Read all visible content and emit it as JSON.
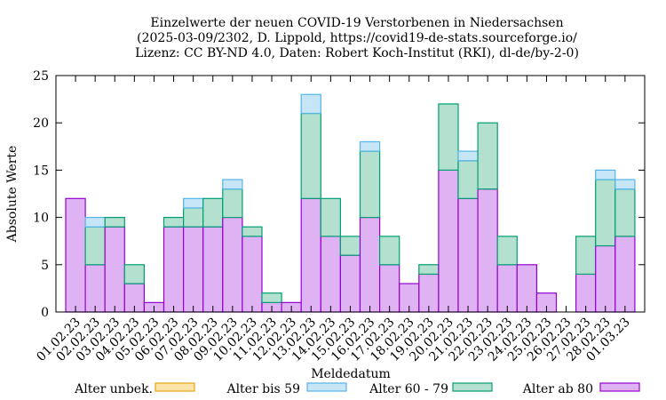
{
  "chart_data": {
    "type": "bar",
    "stacked": true,
    "title": [
      "Einzelwerte der neuen COVID-19 Verstorbenen in Niedersachsen",
      "(2025-03-09/2302, D. Lippold, https://covid19-de-stats.sourceforge.io/",
      "Lizenz: CC BY-ND 4.0, Daten: Robert Koch-Institut (RKI), dl-de/by-2-0)"
    ],
    "xlabel": "Meldedatum",
    "ylabel": "Absolute Werte",
    "ylim": [
      0,
      25
    ],
    "yticks": [
      0,
      5,
      10,
      15,
      20,
      25
    ],
    "grid": false,
    "legend_position": "bottom",
    "categories": [
      "01.02.23",
      "02.02.23",
      "03.02.23",
      "04.02.23",
      "05.02.23",
      "06.02.23",
      "07.02.23",
      "08.02.23",
      "09.02.23",
      "10.02.23",
      "11.02.23",
      "12.02.23",
      "13.02.23",
      "14.02.23",
      "15.02.23",
      "16.02.23",
      "17.02.23",
      "18.02.23",
      "19.02.23",
      "20.02.23",
      "21.02.23",
      "22.02.23",
      "23.02.23",
      "24.02.23",
      "25.02.23",
      "26.02.23",
      "27.02.23",
      "28.02.23",
      "01.03.23"
    ],
    "series": [
      {
        "name": "Alter unbek.",
        "fill": "#fce4a8",
        "stroke": "#e8a317",
        "values": [
          0,
          0,
          0,
          0,
          0,
          0,
          0,
          0,
          0,
          0,
          0,
          0,
          0,
          0,
          0,
          0,
          0,
          0,
          0,
          0,
          0,
          0,
          0,
          0,
          0,
          0,
          0,
          0,
          0
        ]
      },
      {
        "name": "Alter bis 59",
        "fill": "#c6e5f6",
        "stroke": "#56b4e9",
        "values": [
          0,
          1,
          0,
          0,
          0,
          0,
          1,
          0,
          1,
          0,
          0,
          0,
          2,
          0,
          0,
          1,
          0,
          0,
          0,
          0,
          1,
          0,
          0,
          0,
          0,
          0,
          0,
          1,
          1
        ]
      },
      {
        "name": "Alter 60 - 79",
        "fill": "#b3e0cf",
        "stroke": "#009e73",
        "values": [
          0,
          4,
          1,
          2,
          0,
          1,
          2,
          3,
          3,
          1,
          1,
          0,
          9,
          4,
          2,
          7,
          3,
          0,
          1,
          7,
          4,
          7,
          3,
          0,
          0,
          0,
          4,
          7,
          5
        ]
      },
      {
        "name": "Alter ab 80",
        "fill": "#dfb3f3",
        "stroke": "#9400d3",
        "values": [
          12,
          5,
          9,
          3,
          1,
          9,
          9,
          9,
          10,
          8,
          1,
          1,
          12,
          8,
          6,
          10,
          5,
          3,
          4,
          15,
          12,
          13,
          5,
          5,
          2,
          0,
          4,
          7,
          8
        ]
      }
    ],
    "stack_order": [
      "Alter ab 80",
      "Alter 60 - 79",
      "Alter bis 59",
      "Alter unbek."
    ]
  }
}
